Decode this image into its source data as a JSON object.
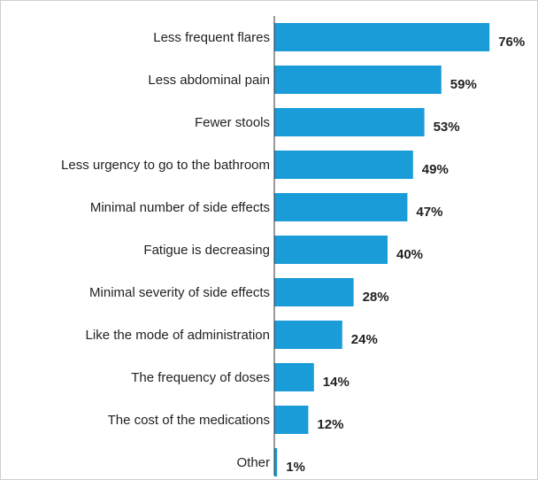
{
  "chart_data": {
    "type": "bar",
    "orientation": "horizontal",
    "title": "",
    "xlabel": "",
    "ylabel": "",
    "xlim": [
      0,
      100
    ],
    "grid": false,
    "legend": "none",
    "bar_color": "#1a9cd8",
    "categories": [
      "Less frequent flares",
      "Less abdominal pain",
      "Fewer stools",
      "Less urgency to go to the bathroom",
      "Minimal number of side effects",
      "Fatigue is decreasing",
      "Minimal severity of side effects",
      "Like the mode of administration",
      "The frequency of doses",
      "The cost of the medications",
      "Other"
    ],
    "values": [
      76,
      59,
      53,
      49,
      47,
      40,
      28,
      24,
      14,
      12,
      1
    ],
    "value_labels": [
      "76%",
      "59%",
      "53%",
      "49%",
      "47%",
      "40%",
      "28%",
      "24%",
      "14%",
      "12%",
      "1%"
    ]
  }
}
